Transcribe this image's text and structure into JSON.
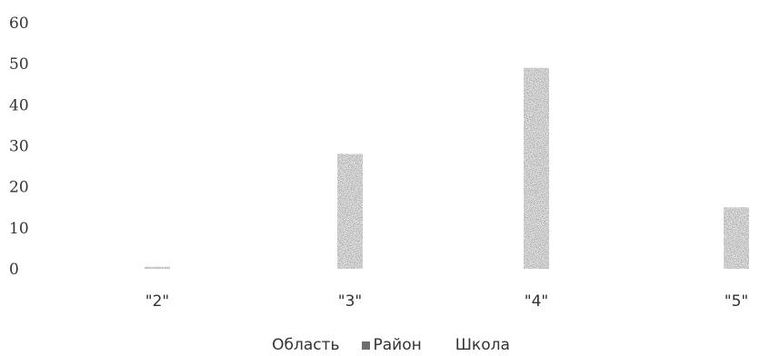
{
  "chart_data": {
    "type": "bar",
    "title": "",
    "xlabel": "",
    "ylabel": "",
    "categories": [
      "\"2\"",
      "\"3\"",
      "\"4\"",
      "\"5\""
    ],
    "y_ticks": [
      "0",
      "10",
      "20",
      "30",
      "40",
      "50",
      "60"
    ],
    "ylim": [
      0,
      60
    ],
    "grid": false,
    "legend_position": "bottom",
    "series": [
      {
        "name": "Область",
        "color": "#ffffff",
        "values": [
          0,
          0,
          0,
          0
        ]
      },
      {
        "name": "Район",
        "color": "#6e6e6e",
        "values": [
          0.5,
          28,
          49,
          15
        ]
      },
      {
        "name": "Школа",
        "color": "#ffffff",
        "values": [
          0,
          0,
          0,
          0
        ]
      }
    ]
  }
}
